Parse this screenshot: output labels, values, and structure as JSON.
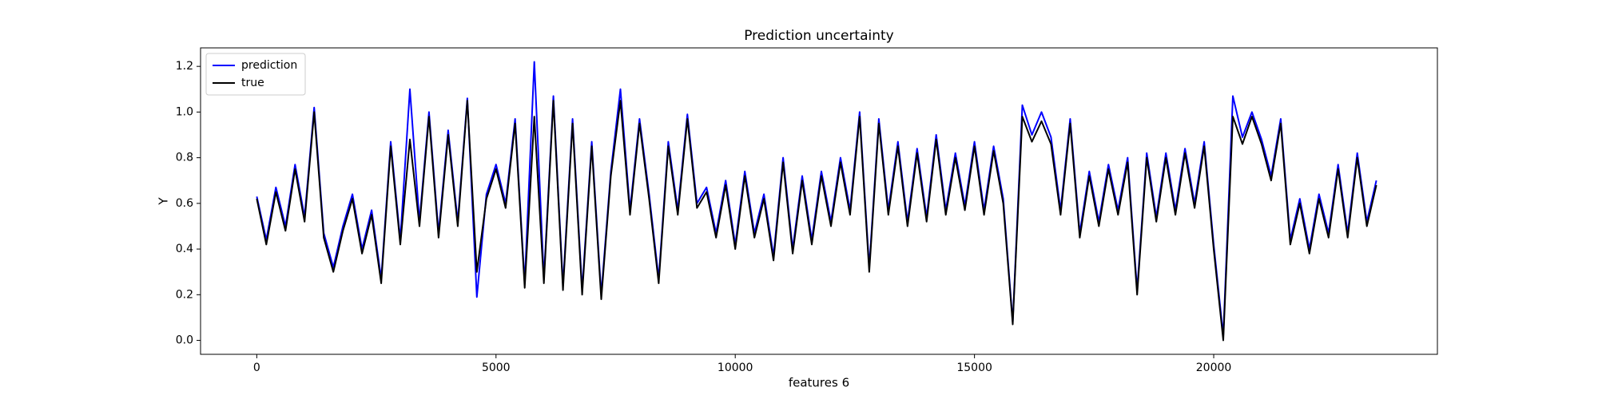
{
  "chart_data": {
    "type": "line",
    "title": "Prediction uncertainty",
    "xlabel": "features 6",
    "ylabel": "Y",
    "x": [
      0,
      200,
      400,
      600,
      800,
      1000,
      1200,
      1400,
      1600,
      1800,
      2000,
      2200,
      2400,
      2600,
      2800,
      3000,
      3200,
      3400,
      3600,
      3800,
      4000,
      4200,
      4400,
      4600,
      4800,
      5000,
      5200,
      5400,
      5600,
      5800,
      6000,
      6200,
      6400,
      6600,
      6800,
      7000,
      7200,
      7400,
      7600,
      7800,
      8000,
      8200,
      8400,
      8600,
      8800,
      9000,
      9200,
      9400,
      9600,
      9800,
      10000,
      10200,
      10400,
      10600,
      10800,
      11000,
      11200,
      11400,
      11600,
      11800,
      12000,
      12200,
      12400,
      12600,
      12800,
      13000,
      13200,
      13400,
      13600,
      13800,
      14000,
      14200,
      14400,
      14600,
      14800,
      15000,
      15200,
      15400,
      15600,
      15800,
      16000,
      16200,
      16400,
      16600,
      16800,
      17000,
      17200,
      17400,
      17600,
      17800,
      18000,
      18200,
      18400,
      18600,
      18800,
      19000,
      19200,
      19400,
      19600,
      19800,
      20000,
      20200,
      20400,
      20600,
      20800,
      21000,
      21200,
      21400,
      21600,
      21800,
      22000,
      22200,
      22400,
      22600,
      22800,
      23000,
      23200,
      23400
    ],
    "series": [
      {
        "name": "prediction",
        "color": "#0000ff",
        "values": [
          0.63,
          0.44,
          0.67,
          0.5,
          0.77,
          0.54,
          1.02,
          0.47,
          0.32,
          0.5,
          0.64,
          0.4,
          0.57,
          0.27,
          0.87,
          0.44,
          1.1,
          0.52,
          1.0,
          0.47,
          0.92,
          0.52,
          1.06,
          0.19,
          0.64,
          0.77,
          0.6,
          0.97,
          0.25,
          1.22,
          0.27,
          1.07,
          0.24,
          0.97,
          0.22,
          0.87,
          0.2,
          0.74,
          1.1,
          0.57,
          0.97,
          0.64,
          0.27,
          0.87,
          0.57,
          0.99,
          0.6,
          0.67,
          0.47,
          0.7,
          0.42,
          0.74,
          0.47,
          0.64,
          0.37,
          0.8,
          0.4,
          0.72,
          0.44,
          0.74,
          0.52,
          0.8,
          0.57,
          1.0,
          0.32,
          0.97,
          0.57,
          0.87,
          0.52,
          0.84,
          0.54,
          0.9,
          0.57,
          0.82,
          0.59,
          0.87,
          0.57,
          0.85,
          0.62,
          0.08,
          1.03,
          0.9,
          1.0,
          0.89,
          0.57,
          0.97,
          0.47,
          0.74,
          0.52,
          0.77,
          0.57,
          0.8,
          0.22,
          0.82,
          0.54,
          0.82,
          0.57,
          0.84,
          0.6,
          0.87,
          0.42,
          0.02,
          1.07,
          0.89,
          1.0,
          0.88,
          0.72,
          0.97,
          0.44,
          0.62,
          0.4,
          0.64,
          0.47,
          0.77,
          0.47,
          0.82,
          0.52,
          0.7
        ]
      },
      {
        "name": "true",
        "color": "#000000",
        "values": [
          0.62,
          0.42,
          0.65,
          0.48,
          0.75,
          0.52,
          1.0,
          0.45,
          0.3,
          0.48,
          0.62,
          0.38,
          0.55,
          0.25,
          0.85,
          0.42,
          0.88,
          0.5,
          0.98,
          0.45,
          0.9,
          0.5,
          1.05,
          0.3,
          0.62,
          0.75,
          0.58,
          0.95,
          0.23,
          0.98,
          0.25,
          1.05,
          0.22,
          0.95,
          0.2,
          0.85,
          0.18,
          0.72,
          1.05,
          0.55,
          0.95,
          0.62,
          0.25,
          0.85,
          0.55,
          0.97,
          0.58,
          0.65,
          0.45,
          0.68,
          0.4,
          0.72,
          0.45,
          0.62,
          0.35,
          0.78,
          0.38,
          0.7,
          0.42,
          0.72,
          0.5,
          0.78,
          0.55,
          0.98,
          0.3,
          0.95,
          0.55,
          0.85,
          0.5,
          0.82,
          0.52,
          0.88,
          0.55,
          0.8,
          0.57,
          0.85,
          0.55,
          0.83,
          0.6,
          0.07,
          0.98,
          0.87,
          0.96,
          0.86,
          0.55,
          0.95,
          0.45,
          0.72,
          0.5,
          0.75,
          0.55,
          0.78,
          0.2,
          0.8,
          0.52,
          0.8,
          0.55,
          0.82,
          0.58,
          0.85,
          0.4,
          0.0,
          0.98,
          0.86,
          0.98,
          0.86,
          0.7,
          0.95,
          0.42,
          0.6,
          0.38,
          0.62,
          0.45,
          0.75,
          0.45,
          0.8,
          0.5,
          0.68
        ]
      }
    ],
    "xlim": [
      -1175,
      24675
    ],
    "xticks": [
      0,
      5000,
      10000,
      15000,
      20000
    ],
    "ylim": [
      -0.061,
      1.281
    ],
    "yticks": [
      {
        "value": 0,
        "label": "0.0"
      },
      0.2,
      0.4,
      0.6,
      0.8,
      {
        "value": 1,
        "label": "1.0"
      },
      1.2
    ],
    "legend": "upper left"
  }
}
